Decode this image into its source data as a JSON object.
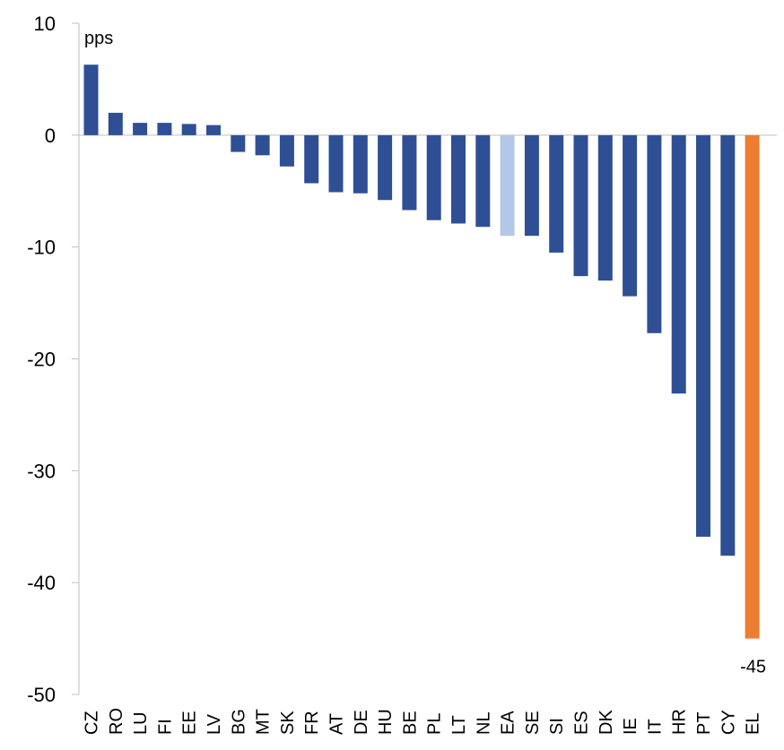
{
  "chart_data": {
    "type": "bar",
    "unit_label": "pps",
    "categories": [
      "CZ",
      "RO",
      "LU",
      "FI",
      "EE",
      "LV",
      "BG",
      "MT",
      "SK",
      "FR",
      "AT",
      "DE",
      "HU",
      "BE",
      "PL",
      "LT",
      "NL",
      "EA",
      "SE",
      "SI",
      "ES",
      "DK",
      "IE",
      "IT",
      "HR",
      "PT",
      "CY",
      "EL"
    ],
    "values": [
      6.3,
      2.0,
      1.1,
      1.1,
      1.0,
      0.9,
      -1.5,
      -1.8,
      -2.8,
      -4.3,
      -5.1,
      -5.2,
      -5.8,
      -6.7,
      -7.6,
      -7.9,
      -8.2,
      -9.0,
      -9.0,
      -10.5,
      -12.6,
      -13.0,
      -14.4,
      -17.7,
      -23.1,
      -35.9,
      -37.6,
      -45.0
    ],
    "ylim": [
      -50,
      10
    ],
    "yticks": [
      "10",
      "0",
      "-10",
      "-20",
      "-30",
      "-40",
      "-50"
    ],
    "data_labels": [
      {
        "category": "EL",
        "text": "-45"
      }
    ],
    "colors": {
      "default": "#2f4f95",
      "EA": "#b4c7e7",
      "EL": "#ed7d31",
      "axis": "#bfbfbf"
    }
  }
}
